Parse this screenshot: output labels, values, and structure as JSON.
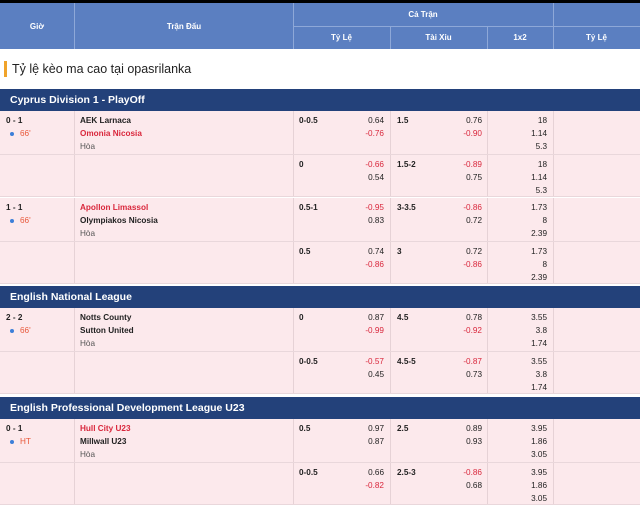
{
  "header": {
    "gio": "Giờ",
    "tran_dau": "Trận Đấu",
    "ca_tran": "Cả Trận",
    "ty_le": "Tỷ Lệ",
    "tai_xiu": "Tài Xỉu",
    "x12": "1x2",
    "ty_le_2": "Tỷ Lệ"
  },
  "promo": "Tỷ lệ kèo ma cao tại opasrilanka",
  "leagues": [
    {
      "name": "Cyprus Division 1 - PlayOff"
    },
    {
      "name": "English National League"
    },
    {
      "name": "English Professional Development League U23"
    }
  ],
  "matches": [
    {
      "score": "0 - 1",
      "minute": "66'",
      "home": "AEK Larnaca",
      "away": "Omonia Nicosia",
      "draw": "Hòa",
      "lines": [
        {
          "hcp": "0-0.5",
          "h1": "0.64",
          "h2": "-0.76",
          "ou": "1.5",
          "o1": "0.76",
          "o2": "-0.90",
          "x1": "18",
          "x2": "1.14",
          "x3": "5.3"
        },
        {
          "hcp": "0",
          "h1": "-0.66",
          "h2": "0.54",
          "ou": "1.5-2",
          "o1": "-0.89",
          "o2": "0.75",
          "x1": "18",
          "x2": "1.14",
          "x3": "5.3"
        }
      ]
    },
    {
      "score": "1 - 1",
      "minute": "66'",
      "home": "Apollon Limassol",
      "away": "Olympiakos Nicosia",
      "draw": "Hòa",
      "lines": [
        {
          "hcp": "0.5-1",
          "h1": "-0.95",
          "h2": "0.83",
          "ou": "3-3.5",
          "o1": "-0.86",
          "o2": "0.72",
          "x1": "1.73",
          "x2": "8",
          "x3": "2.39"
        },
        {
          "hcp": "0.5",
          "h1": "0.74",
          "h2": "-0.86",
          "ou": "3",
          "o1": "0.72",
          "o2": "-0.86",
          "x1": "1.73",
          "x2": "8",
          "x3": "2.39"
        }
      ]
    },
    {
      "score": "2 - 2",
      "minute": "66'",
      "home": "Notts County",
      "away": "Sutton United",
      "draw": "Hòa",
      "lines": [
        {
          "hcp": "0",
          "h1": "0.87",
          "h2": "-0.99",
          "ou": "4.5",
          "o1": "0.78",
          "o2": "-0.92",
          "x1": "3.55",
          "x2": "3.8",
          "x3": "1.74"
        },
        {
          "hcp": "0-0.5",
          "h1": "-0.57",
          "h2": "0.45",
          "ou": "4.5-5",
          "o1": "-0.87",
          "o2": "0.73",
          "x1": "3.55",
          "x2": "3.8",
          "x3": "1.74"
        }
      ]
    },
    {
      "score": "0 - 1",
      "minute": "HT",
      "home": "Hull City U23",
      "away": "Millwall U23",
      "draw": "Hòa",
      "lines": [
        {
          "hcp": "0.5",
          "h1": "0.97",
          "h2": "0.87",
          "ou": "2.5",
          "o1": "0.89",
          "o2": "0.93",
          "x1": "3.95",
          "x2": "1.86",
          "x3": "3.05"
        },
        {
          "hcp": "0-0.5",
          "h1": "0.66",
          "h2": "-0.82",
          "ou": "2.5-3",
          "o1": "-0.86",
          "o2": "0.68",
          "x1": "3.95",
          "x2": "1.86",
          "x3": "3.05"
        }
      ]
    }
  ],
  "colors": {
    "header_bg": "#5b7fc1",
    "league_bg": "#23417a",
    "row_bg": "#fce9ec",
    "negative": "#d9273c",
    "accent": "#f0a32a"
  }
}
